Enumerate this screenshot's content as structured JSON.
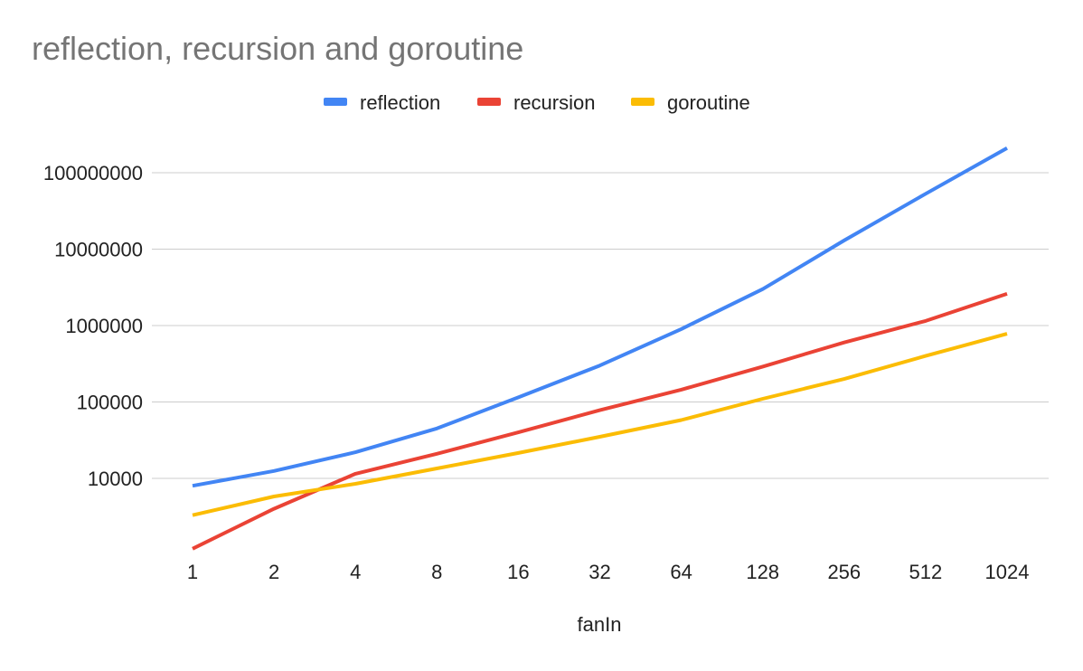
{
  "chart_data": {
    "type": "line",
    "title": "reflection, recursion and goroutine",
    "xlabel": "fanIn",
    "ylabel": "",
    "y_scale": "log",
    "categories": [
      "1",
      "2",
      "4",
      "8",
      "16",
      "32",
      "64",
      "128",
      "256",
      "512",
      "1024"
    ],
    "y_ticks": [
      "10000",
      "100000",
      "1000000",
      "10000000",
      "100000000"
    ],
    "ylim": [
      1000,
      200000000
    ],
    "grid": true,
    "legend_position": "top",
    "series": [
      {
        "name": "reflection",
        "color": "#4285f4",
        "values": [
          8000,
          12500,
          22000,
          45000,
          115000,
          300000,
          900000,
          3000000,
          13000000,
          53000000,
          210000000
        ]
      },
      {
        "name": "recursion",
        "color": "#ea4335",
        "values": [
          1200,
          4000,
          11500,
          21000,
          40000,
          78000,
          145000,
          290000,
          600000,
          1150000,
          2600000
        ]
      },
      {
        "name": "goroutine",
        "color": "#fbbc04",
        "values": [
          3300,
          5800,
          8500,
          13500,
          21500,
          35000,
          58000,
          110000,
          200000,
          400000,
          780000
        ]
      }
    ]
  }
}
